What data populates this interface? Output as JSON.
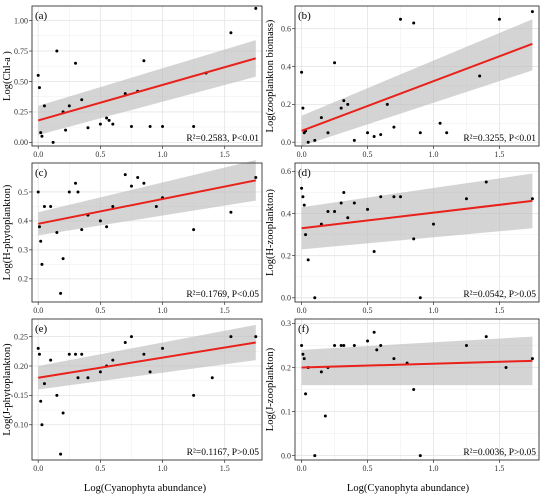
{
  "x_axis_title": "Log(Cyanophyta abundance)",
  "chart_data": [
    {
      "type": "scatter",
      "panel": "(a)",
      "ylabel": "Log(Chl-a )",
      "stat_label": "R²=0.2583, P<0.01",
      "xlim": [
        -0.05,
        1.8
      ],
      "ylim": [
        -0.03,
        1.12
      ],
      "xticks": [
        0.0,
        0.5,
        1.0,
        1.5
      ],
      "xtick_labels": [
        "0.0",
        "0.5",
        "1.0",
        "1.5"
      ],
      "yticks": [
        0.0,
        0.25,
        0.5,
        0.75,
        1.0
      ],
      "ytick_labels": [
        "0.00",
        "0.25",
        "0.50",
        "0.75",
        "1.00"
      ],
      "fit": {
        "x": [
          0.0,
          1.75
        ],
        "y": [
          0.18,
          0.69
        ],
        "ci_low": [
          0.06,
          0.54
        ],
        "ci_high": [
          0.3,
          0.84
        ]
      },
      "points": {
        "x": [
          0.0,
          0.01,
          0.02,
          0.03,
          0.05,
          0.12,
          0.15,
          0.2,
          0.22,
          0.25,
          0.3,
          0.35,
          0.4,
          0.5,
          0.55,
          0.57,
          0.6,
          0.7,
          0.75,
          0.8,
          0.85,
          0.9,
          1.0,
          1.25,
          1.35,
          1.55,
          1.75
        ],
        "y": [
          0.55,
          0.45,
          0.08,
          0.05,
          0.3,
          0.0,
          0.75,
          0.25,
          0.1,
          0.3,
          0.65,
          0.35,
          0.12,
          0.15,
          0.2,
          0.18,
          0.15,
          0.4,
          0.13,
          0.42,
          0.67,
          0.13,
          0.13,
          0.13,
          0.57,
          0.9,
          1.1
        ]
      }
    },
    {
      "type": "scatter",
      "panel": "(b)",
      "ylabel": "Log(zooplankton biomass)",
      "stat_label": "R²=0.3255, P<0.01",
      "xlim": [
        -0.05,
        1.8
      ],
      "ylim": [
        -0.02,
        0.72
      ],
      "xticks": [
        0.0,
        0.5,
        1.0,
        1.5
      ],
      "xtick_labels": [
        "0.0",
        "0.5",
        "1.0",
        "1.5"
      ],
      "yticks": [
        0.0,
        0.2,
        0.4,
        0.6
      ],
      "ytick_labels": [
        "0.0",
        "0.2",
        "0.4",
        "0.6"
      ],
      "fit": {
        "x": [
          0.0,
          1.75
        ],
        "y": [
          0.06,
          0.52
        ],
        "ci_low": [
          -0.02,
          0.38
        ],
        "ci_high": [
          0.14,
          0.65
        ]
      },
      "points": {
        "x": [
          0.0,
          0.01,
          0.02,
          0.03,
          0.05,
          0.1,
          0.15,
          0.2,
          0.25,
          0.3,
          0.32,
          0.35,
          0.4,
          0.5,
          0.55,
          0.6,
          0.65,
          0.7,
          0.75,
          0.85,
          0.9,
          1.05,
          1.1,
          1.35,
          1.5,
          1.75
        ],
        "y": [
          0.37,
          0.18,
          0.05,
          0.06,
          0.0,
          0.01,
          0.13,
          0.05,
          0.42,
          0.18,
          0.22,
          0.2,
          0.01,
          0.05,
          0.03,
          0.04,
          0.2,
          0.08,
          0.65,
          0.63,
          0.05,
          0.1,
          0.05,
          0.35,
          0.65,
          0.69
        ]
      }
    },
    {
      "type": "scatter",
      "panel": "(c)",
      "ylabel": "Log(H-phytoplankton)",
      "stat_label": "R²=0.1769, P<0.05",
      "xlim": [
        -0.05,
        1.8
      ],
      "ylim": [
        0.12,
        0.6
      ],
      "xticks": [
        0.0,
        0.5,
        1.0,
        1.5
      ],
      "xtick_labels": [
        "0.0",
        "0.5",
        "1.0",
        "1.5"
      ],
      "yticks": [
        0.2,
        0.3,
        0.4,
        0.5
      ],
      "ytick_labels": [
        "0.2",
        "0.3",
        "0.4",
        "0.5"
      ],
      "fit": {
        "x": [
          0.0,
          1.75
        ],
        "y": [
          0.39,
          0.54
        ],
        "ci_low": [
          0.35,
          0.47
        ],
        "ci_high": [
          0.43,
          0.61
        ]
      },
      "points": {
        "x": [
          0.0,
          0.01,
          0.02,
          0.03,
          0.05,
          0.1,
          0.15,
          0.18,
          0.2,
          0.25,
          0.3,
          0.32,
          0.35,
          0.4,
          0.5,
          0.55,
          0.6,
          0.7,
          0.75,
          0.8,
          0.85,
          0.95,
          1.0,
          1.25,
          1.55,
          1.75
        ],
        "y": [
          0.5,
          0.38,
          0.33,
          0.25,
          0.45,
          0.45,
          0.36,
          0.15,
          0.27,
          0.5,
          0.53,
          0.5,
          0.37,
          0.42,
          0.4,
          0.38,
          0.45,
          0.56,
          0.52,
          0.55,
          0.53,
          0.45,
          0.48,
          0.37,
          0.43,
          0.55
        ]
      }
    },
    {
      "type": "scatter",
      "panel": "(d)",
      "ylabel": "Log(H-zooplankton)",
      "stat_label": "R²=0.0542, P>0.05",
      "xlim": [
        -0.05,
        1.8
      ],
      "ylim": [
        -0.02,
        0.64
      ],
      "xticks": [
        0.0,
        0.5,
        1.0,
        1.5
      ],
      "xtick_labels": [
        "0.0",
        "0.5",
        "1.0",
        "1.5"
      ],
      "yticks": [
        0.0,
        0.2,
        0.4,
        0.6
      ],
      "ytick_labels": [
        "0.0",
        "0.2",
        "0.4",
        "0.6"
      ],
      "fit": {
        "x": [
          0.0,
          1.75
        ],
        "y": [
          0.33,
          0.46
        ],
        "ci_low": [
          0.23,
          0.33
        ],
        "ci_high": [
          0.43,
          0.59
        ]
      },
      "points": {
        "x": [
          0.0,
          0.01,
          0.02,
          0.03,
          0.05,
          0.1,
          0.15,
          0.2,
          0.25,
          0.3,
          0.32,
          0.35,
          0.4,
          0.5,
          0.55,
          0.6,
          0.7,
          0.75,
          0.85,
          0.9,
          1.0,
          1.25,
          1.4,
          1.75
        ],
        "y": [
          0.52,
          0.48,
          0.44,
          0.3,
          0.18,
          0.0,
          0.35,
          0.41,
          0.41,
          0.45,
          0.5,
          0.38,
          0.45,
          0.42,
          0.22,
          0.48,
          0.48,
          0.48,
          0.28,
          0.0,
          0.35,
          0.47,
          0.55,
          0.47
        ]
      }
    },
    {
      "type": "scatter",
      "panel": "(e)",
      "ylabel": "Log(J-phytoplankton)",
      "stat_label": "R²=0.1167, P>0.05",
      "xlim": [
        -0.05,
        1.8
      ],
      "ylim": [
        0.04,
        0.28
      ],
      "xticks": [
        0.0,
        0.5,
        1.0,
        1.5
      ],
      "xtick_labels": [
        "0.0",
        "0.5",
        "1.0",
        "1.5"
      ],
      "yticks": [
        0.1,
        0.15,
        0.2,
        0.25
      ],
      "ytick_labels": [
        "0.10",
        "0.15",
        "0.20",
        "0.25"
      ],
      "fit": {
        "x": [
          0.0,
          1.75
        ],
        "y": [
          0.18,
          0.24
        ],
        "ci_low": [
          0.16,
          0.21
        ],
        "ci_high": [
          0.2,
          0.27
        ]
      },
      "points": {
        "x": [
          0.0,
          0.01,
          0.02,
          0.03,
          0.05,
          0.1,
          0.15,
          0.18,
          0.2,
          0.25,
          0.3,
          0.32,
          0.35,
          0.4,
          0.5,
          0.55,
          0.6,
          0.7,
          0.75,
          0.85,
          0.9,
          1.0,
          1.25,
          1.4,
          1.55,
          1.75
        ],
        "y": [
          0.23,
          0.22,
          0.14,
          0.1,
          0.17,
          0.21,
          0.15,
          0.05,
          0.12,
          0.22,
          0.22,
          0.18,
          0.22,
          0.18,
          0.19,
          0.2,
          0.21,
          0.24,
          0.25,
          0.22,
          0.19,
          0.23,
          0.15,
          0.18,
          0.25,
          0.25
        ]
      }
    },
    {
      "type": "scatter",
      "panel": "(f)",
      "ylabel": "Log(J-zooplankton)",
      "stat_label": "R²=0.0036, P>0.05",
      "xlim": [
        -0.05,
        1.8
      ],
      "ylim": [
        -0.01,
        0.31
      ],
      "xticks": [
        0.0,
        0.5,
        1.0,
        1.5
      ],
      "xtick_labels": [
        "0.0",
        "0.5",
        "1.0",
        "1.5"
      ],
      "yticks": [
        0.0,
        0.1,
        0.2,
        0.3
      ],
      "ytick_labels": [
        "0.0",
        "0.1",
        "0.2",
        "0.3"
      ],
      "fit": {
        "x": [
          0.0,
          1.75
        ],
        "y": [
          0.2,
          0.215
        ],
        "ci_low": [
          0.16,
          0.16
        ],
        "ci_high": [
          0.24,
          0.27
        ]
      },
      "points": {
        "x": [
          0.0,
          0.01,
          0.02,
          0.03,
          0.05,
          0.1,
          0.15,
          0.18,
          0.2,
          0.25,
          0.3,
          0.32,
          0.4,
          0.5,
          0.55,
          0.57,
          0.6,
          0.7,
          0.8,
          0.85,
          0.9,
          1.25,
          1.4,
          1.55,
          1.75
        ],
        "y": [
          0.25,
          0.23,
          0.22,
          0.14,
          0.2,
          0.0,
          0.19,
          0.09,
          0.2,
          0.25,
          0.25,
          0.25,
          0.25,
          0.26,
          0.28,
          0.24,
          0.25,
          0.22,
          0.21,
          0.15,
          0.0,
          0.25,
          0.27,
          0.2,
          0.22
        ]
      }
    }
  ]
}
